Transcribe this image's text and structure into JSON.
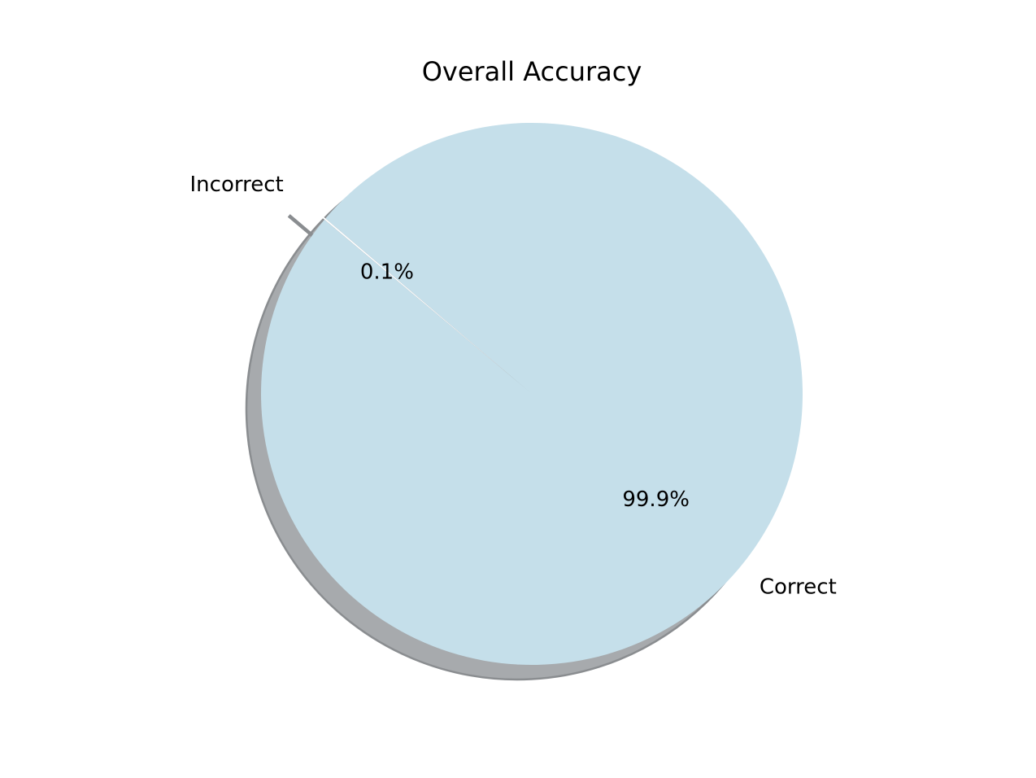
{
  "chart_data": {
    "type": "pie",
    "title": "Overall Accuracy",
    "slices": [
      {
        "label": "Correct",
        "value": 99.9,
        "pct_label": "99.9%",
        "color": "#c5dfea",
        "exploded": false
      },
      {
        "label": "Incorrect",
        "value": 0.1,
        "pct_label": "0.1%",
        "color": "#ffffff",
        "exploded": true
      }
    ],
    "start_angle_deg": 140,
    "shadow": true,
    "shadow_color": "#a7aaad",
    "legend": "none"
  }
}
